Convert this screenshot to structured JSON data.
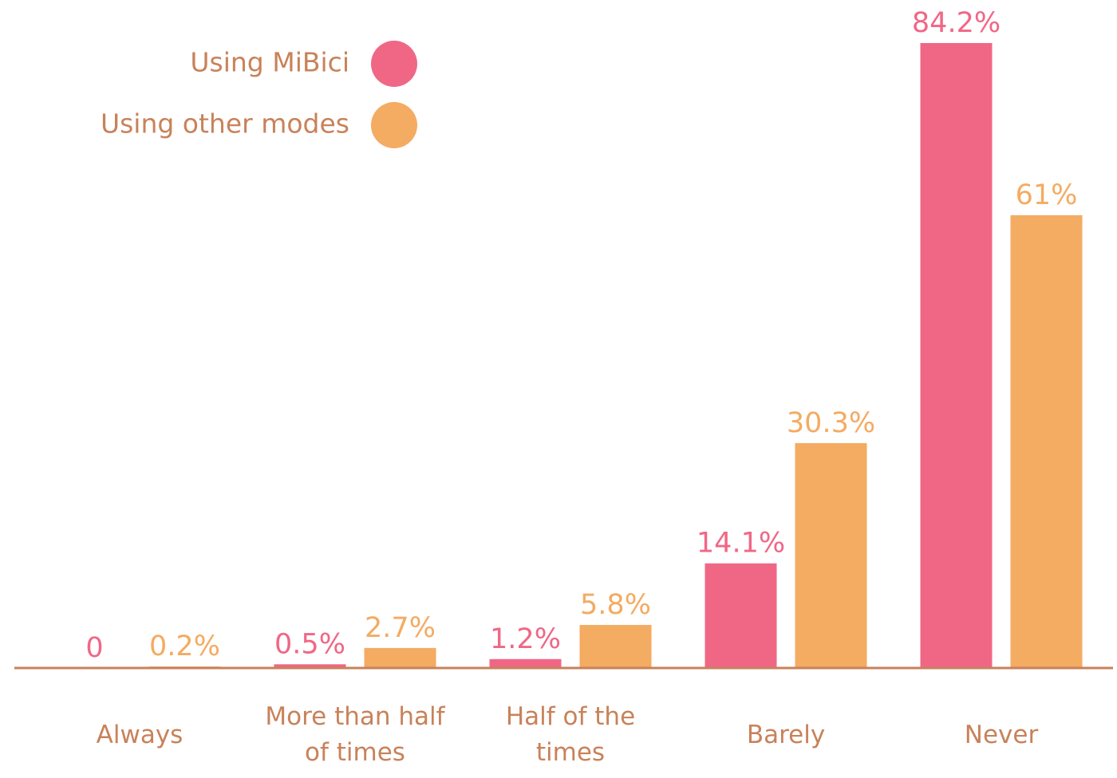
{
  "chart_data": {
    "type": "bar",
    "categories": [
      "Always",
      "More than half of times",
      "Half of the times",
      "Barely",
      "Never"
    ],
    "series": [
      {
        "name": "Using MiBici",
        "color": "#f06786",
        "values": [
          0,
          0.5,
          1.2,
          14.1,
          84.2
        ],
        "value_labels": [
          "0",
          "0.5%",
          "1.2%",
          "14.1%",
          "84.2%"
        ]
      },
      {
        "name": "Using other modes",
        "color": "#f4ab62",
        "values": [
          0.2,
          2.7,
          5.8,
          30.3,
          61
        ],
        "value_labels": [
          "0.2%",
          "2.7%",
          "5.8%",
          "30.3%",
          "61%"
        ]
      }
    ],
    "ylim": [
      0,
      90
    ],
    "grid": false,
    "legend": "upper left"
  }
}
